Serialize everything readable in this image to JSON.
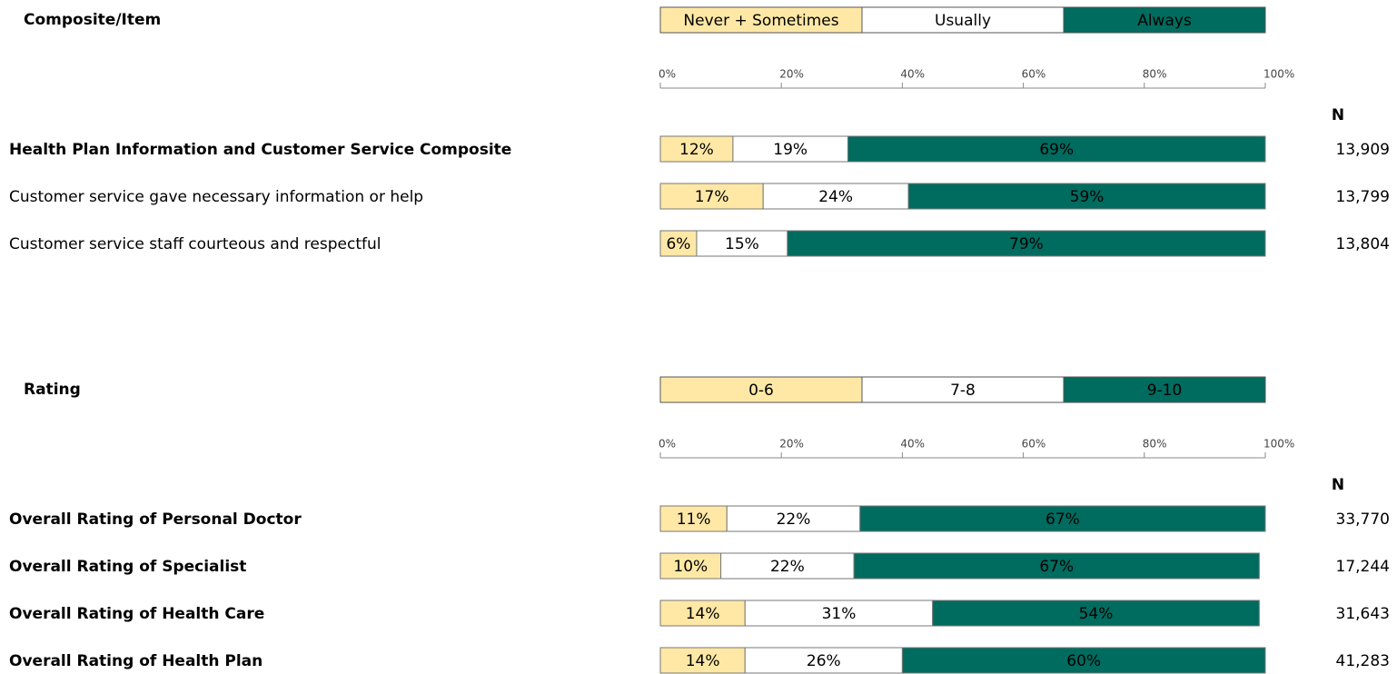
{
  "chart_data": [
    {
      "type": "bar",
      "stacked": true,
      "orientation": "horizontal",
      "title": "Composite/Item",
      "categories": [
        "Health Plan Information and Customer Service Composite",
        "Customer service gave necessary information or help",
        "Customer service staff courteous and respectful"
      ],
      "bold": [
        true,
        false,
        false
      ],
      "series": [
        {
          "name": "Never + Sometimes",
          "color": "#ffe8a6",
          "text_color": "#000000",
          "values": [
            12,
            17,
            6
          ],
          "value_labels": [
            "12%",
            "17%",
            "6%"
          ]
        },
        {
          "name": "Usually",
          "color": "#ffffff",
          "text_color": "#000000",
          "values": [
            19,
            24,
            15
          ],
          "value_labels": [
            "19%",
            "24%",
            "15%"
          ]
        },
        {
          "name": "Always",
          "color": "#006b5f",
          "text_color": "#ffffff",
          "values": [
            69,
            59,
            79
          ],
          "value_labels": [
            "69%",
            "59%",
            "79%"
          ]
        }
      ],
      "xlim": [
        0,
        100
      ],
      "xticks": [
        {
          "value": 0,
          "label": "0%"
        },
        {
          "value": 20,
          "label": "20%"
        },
        {
          "value": 40,
          "label": "40%"
        },
        {
          "value": 60,
          "label": "60%"
        },
        {
          "value": 80,
          "label": "80%"
        },
        {
          "value": 100,
          "label": "100%"
        }
      ],
      "n_label": "N",
      "n": [
        "13,909",
        "13,799",
        "13,804"
      ]
    },
    {
      "type": "bar",
      "stacked": true,
      "orientation": "horizontal",
      "title": "Rating",
      "categories": [
        "Overall Rating of Personal Doctor",
        "Overall Rating of Specialist",
        "Overall Rating of Health Care",
        "Overall Rating of Health Plan"
      ],
      "bold": [
        true,
        true,
        true,
        true
      ],
      "series": [
        {
          "name": "0-6",
          "color": "#ffe8a6",
          "text_color": "#000000",
          "values": [
            11,
            10,
            14,
            14
          ],
          "value_labels": [
            "11%",
            "10%",
            "14%",
            "14%"
          ]
        },
        {
          "name": "7-8",
          "color": "#ffffff",
          "text_color": "#000000",
          "values": [
            22,
            22,
            31,
            26
          ],
          "value_labels": [
            "22%",
            "22%",
            "31%",
            "26%"
          ]
        },
        {
          "name": "9-10",
          "color": "#006b5f",
          "text_color": "#ffffff",
          "values": [
            67,
            67,
            54,
            60
          ],
          "value_labels": [
            "67%",
            "67%",
            "54%",
            "60%"
          ]
        }
      ],
      "xlim": [
        0,
        100
      ],
      "xticks": [
        {
          "value": 0,
          "label": "0%"
        },
        {
          "value": 20,
          "label": "20%"
        },
        {
          "value": 40,
          "label": "40%"
        },
        {
          "value": 60,
          "label": "60%"
        },
        {
          "value": 80,
          "label": "80%"
        },
        {
          "value": 100,
          "label": "100%"
        }
      ],
      "n_label": "N",
      "n": [
        "33,770",
        "17,244",
        "31,643",
        "41,283"
      ]
    }
  ]
}
